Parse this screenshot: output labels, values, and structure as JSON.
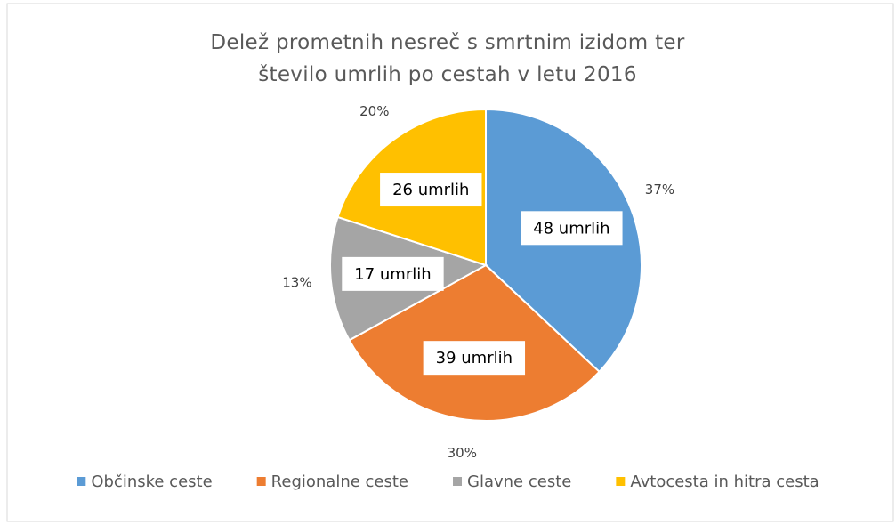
{
  "chart_data": {
    "type": "pie",
    "title": "Delež prometnih nesreč s smrtnim izidom ter število umrlih po cestah v letu 2016",
    "categories": [
      "Občinske ceste",
      "Regionalne ceste",
      "Glavne ceste",
      "Avtocesta in hitra cesta"
    ],
    "values": [
      37,
      30,
      13,
      20
    ],
    "value_labels": [
      "37%",
      "30%",
      "13%",
      "20%"
    ],
    "counts": [
      48,
      39,
      17,
      26
    ],
    "count_labels": [
      "48 umrlih",
      "39 umrlih",
      "17 umrlih",
      "26 umrlih"
    ],
    "colors": [
      "#5b9bd5",
      "#ed7d31",
      "#a5a5a5",
      "#ffc000"
    ],
    "legend": "bottom"
  }
}
